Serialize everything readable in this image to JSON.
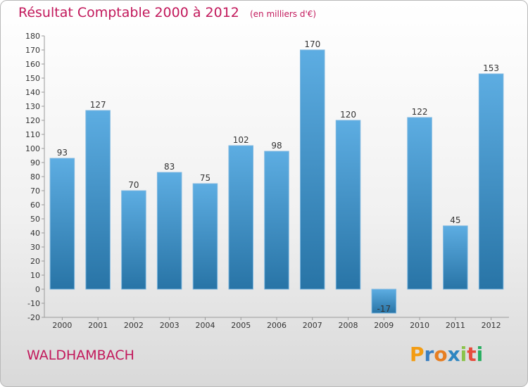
{
  "title": "Résultat Comptable 2000 à 2012",
  "subtitle": "(en milliers d'€)",
  "commune": "WALDHAMBACH",
  "logo": {
    "letters": [
      "P",
      "r",
      "o",
      "x",
      "i",
      "t",
      "i"
    ],
    "colors": [
      "#f39c12",
      "#3a7fc1",
      "#e67e22",
      "#2e86c1",
      "#8bc34a",
      "#e74c3c",
      "#27ae60"
    ]
  },
  "colors": {
    "bar_top": "#5dade2",
    "bar_bottom": "#2874a6",
    "title": "#c2185b"
  },
  "chart_data": {
    "type": "bar",
    "title": "Résultat Comptable 2000 à 2012",
    "subtitle": "(en milliers d'€)",
    "xlabel": "",
    "ylabel": "",
    "ylim": [
      -20,
      180
    ],
    "yticks": [
      -20,
      -10,
      0,
      10,
      20,
      30,
      40,
      50,
      60,
      70,
      80,
      90,
      100,
      110,
      120,
      130,
      140,
      150,
      160,
      170,
      180
    ],
    "grid": false,
    "categories": [
      "2000",
      "2001",
      "2002",
      "2003",
      "2004",
      "2005",
      "2006",
      "2007",
      "2008",
      "2009",
      "2010",
      "2011",
      "2012"
    ],
    "values": [
      93,
      127,
      70,
      83,
      75,
      102,
      98,
      170,
      120,
      -17,
      122,
      45,
      153
    ],
    "value_labels": [
      "93",
      "127",
      "70",
      "83",
      "75",
      "102",
      "98",
      "170",
      "120",
      "-17",
      "122",
      "45",
      "153"
    ]
  }
}
